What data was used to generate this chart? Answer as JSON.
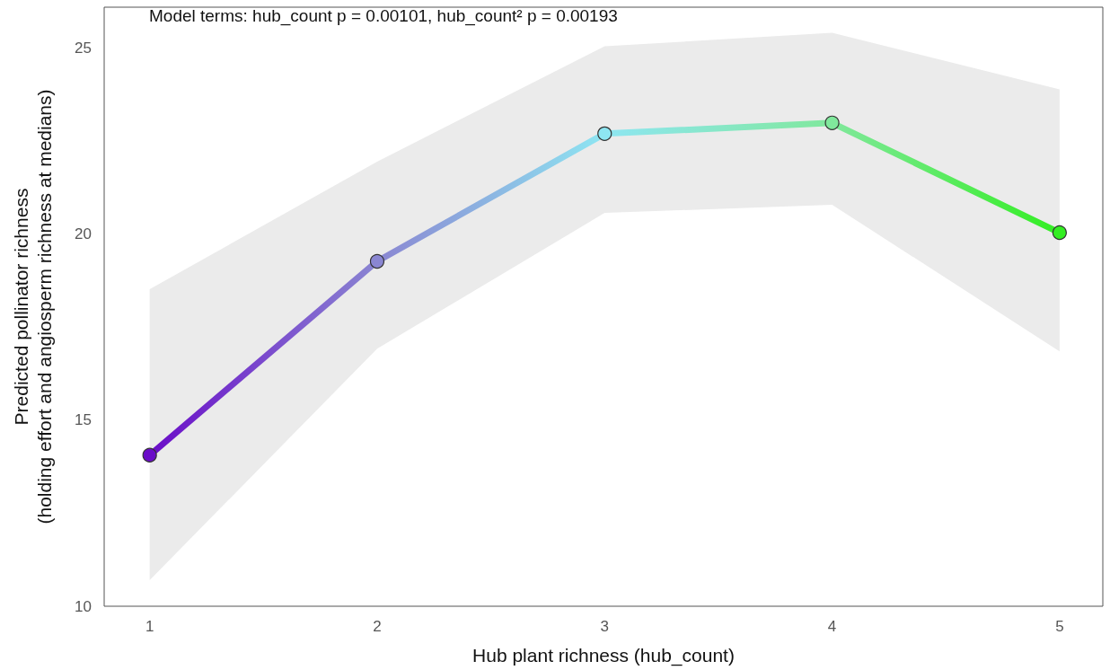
{
  "chart_data": {
    "type": "line",
    "xlabel": "Hub plant richness (hub_count)",
    "ylabel": "Predicted pollinator richness\n(holding effort and angiosperm richness at medians)",
    "annotations": [
      "Model terms: hub_count p = 0.00101, hub_count² p = 0.00193"
    ],
    "x": [
      1,
      2,
      3,
      4,
      5
    ],
    "series": [
      {
        "values": [
          14.06,
          19.27,
          22.7,
          22.99,
          20.04
        ],
        "lower": [
          10.7,
          16.92,
          20.57,
          20.79,
          16.85
        ],
        "upper": [
          18.52,
          21.95,
          25.05,
          25.41,
          23.89
        ],
        "colors": [
          "#6a0cc8",
          "#8a86d2",
          "#8ee6f2",
          "#80e89c",
          "#33ee22"
        ]
      }
    ],
    "xlim": [
      0.8,
      5.19
    ],
    "xticks": [
      1,
      2,
      3,
      4,
      5
    ],
    "ylim": [
      10,
      26.1
    ],
    "yticks": [
      10,
      15,
      20,
      25
    ],
    "grid": false,
    "marker": "circle",
    "line_style": "solid"
  }
}
